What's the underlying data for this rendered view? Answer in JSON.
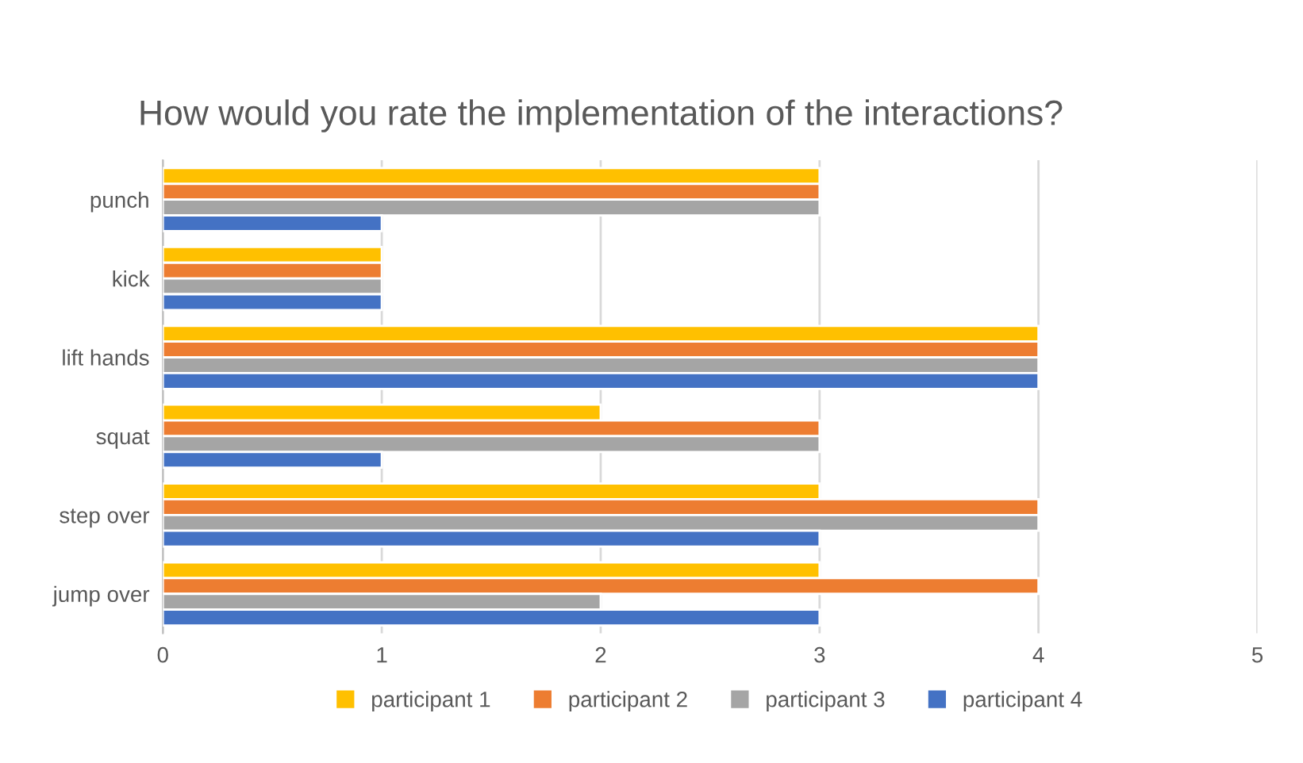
{
  "chart_data": {
    "type": "bar",
    "orientation": "horizontal",
    "title": "How would you rate the implementation of the interactions?",
    "categories": [
      "punch",
      "kick",
      "lift hands",
      "squat",
      "step over",
      "jump over"
    ],
    "series": [
      {
        "name": "participant 1",
        "color": "#ffc000",
        "values": [
          3,
          1,
          4,
          2,
          3,
          3
        ]
      },
      {
        "name": "participant 2",
        "color": "#ed7d31",
        "values": [
          3,
          1,
          4,
          3,
          4,
          4
        ]
      },
      {
        "name": "participant 3",
        "color": "#a5a5a5",
        "values": [
          3,
          1,
          4,
          3,
          4,
          2
        ]
      },
      {
        "name": "participant 4",
        "color": "#4472c4",
        "values": [
          1,
          1,
          4,
          1,
          3,
          3
        ]
      }
    ],
    "xlim": [
      0,
      5
    ],
    "xticks": [
      0,
      1,
      2,
      3,
      4,
      5
    ],
    "grid": "x",
    "legend": "bottom"
  }
}
